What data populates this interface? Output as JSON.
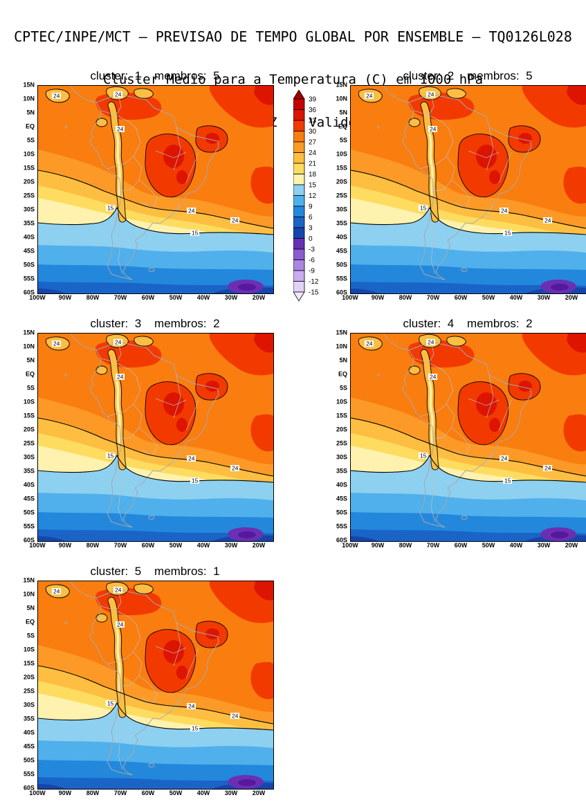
{
  "header": {
    "line1": "CPTEC/INPE/MCT — PREVISAO DE TEMPO GLOBAL POR ENSEMBLE — TQ0126L028",
    "line2": "Cluster Medio para a Temperatura (C) em 1000 hPa",
    "line3": "Previsao de: 2020121400Z    Valido para: 2020121512Z"
  },
  "panels": [
    {
      "title": "cluster:  1    membros:  5",
      "cluster": 1,
      "membros": 5
    },
    {
      "title": "cluster:  2    membros:  5",
      "cluster": 2,
      "membros": 5
    },
    {
      "title": "cluster:  3    membros:  2",
      "cluster": 3,
      "membros": 2
    },
    {
      "title": "cluster:  4    membros:  2",
      "cluster": 4,
      "membros": 2
    },
    {
      "title": "cluster:  5    membros:  1",
      "cluster": 5,
      "membros": 1
    }
  ],
  "axes": {
    "lat_ticks": [
      "15N",
      "10N",
      "5N",
      "EQ",
      "5S",
      "10S",
      "15S",
      "20S",
      "25S",
      "30S",
      "35S",
      "40S",
      "45S",
      "50S",
      "55S",
      "60S"
    ],
    "lon_ticks": [
      "100W",
      "90W",
      "80W",
      "70W",
      "60W",
      "50W",
      "40W",
      "30W",
      "20W"
    ]
  },
  "colorbar": {
    "tick_labels": [
      "39",
      "36",
      "33",
      "30",
      "27",
      "24",
      "21",
      "18",
      "15",
      "12",
      "9",
      "6",
      "3",
      "0",
      "-3",
      "-6",
      "-9",
      "-12",
      "-15"
    ],
    "cell_colors": [
      "#C40000",
      "#DC1400",
      "#F23A00",
      "#FA7D10",
      "#FD9A27",
      "#FDBE42",
      "#FEDC60",
      "#FEF2AE",
      "#8ED0F0",
      "#50B0EC",
      "#2388DC",
      "#1A64C8",
      "#1546AC",
      "#6B2FB3",
      "#8A5CD0",
      "#AC86E2",
      "#C9ACF0",
      "#E2D2F8"
    ],
    "triangle_top": "#A00000",
    "triangle_bottom": "#F0E8FC"
  },
  "map": {
    "contour_labels": [
      "24",
      "15"
    ]
  },
  "chart_data": {
    "type": "heatmap",
    "institution": "CPTEC/INPE/MCT",
    "product": "PREVISAO DE TEMPO GLOBAL POR ENSEMBLE",
    "model": "TQ0126L028",
    "title": "Cluster Medio para a Temperatura (C) em 1000 hPa",
    "forecast_init": "2020121400Z",
    "forecast_valid": "2020121512Z",
    "panels": [
      {
        "cluster": 1,
        "membros": 5
      },
      {
        "cluster": 2,
        "membros": 5
      },
      {
        "cluster": 3,
        "membros": 2
      },
      {
        "cluster": 4,
        "membros": 2
      },
      {
        "cluster": 5,
        "membros": 1
      }
    ],
    "x_axis": {
      "label": "longitude",
      "ticks": [
        "100W",
        "90W",
        "80W",
        "70W",
        "60W",
        "50W",
        "40W",
        "30W",
        "20W"
      ],
      "range": [
        "100W",
        "15W"
      ]
    },
    "y_axis": {
      "label": "latitude",
      "ticks": [
        "15N",
        "10N",
        "5N",
        "EQ",
        "5S",
        "10S",
        "15S",
        "20S",
        "25S",
        "30S",
        "35S",
        "40S",
        "45S",
        "50S",
        "55S",
        "60S"
      ],
      "range": [
        "15N",
        "60S"
      ]
    },
    "levels_c": [
      39,
      36,
      33,
      30,
      27,
      24,
      21,
      18,
      15,
      12,
      9,
      6,
      3,
      0,
      -3,
      -6,
      -9,
      -12,
      -15
    ],
    "labeled_contours_c": [
      24,
      15
    ],
    "legend_position": "between cluster 1 and cluster 2 panels, vertical",
    "grid": false,
    "field_summary": [
      "27-33 C over tropical South America north of about 20S; warmest cores 30-36 C over central and northeast Brazil and near the northern coast",
      "Cool strip of 15-24 C air along the Andes near 70W from the Equator to about 30S (24 C contour wraps the mountains)",
      "24 C contour crosses the continent near 25S-30S",
      "15 C contour near 33S-35S with a northward spike along the Andes",
      "Temperatures fall southward through 12, 9, 6 and 3 C bands to 0-3 C near 60S",
      "Small pocket below 0 C (purple) in the far South Atlantic near 55S 30W",
      "All five cluster means show nearly identical patterns"
    ]
  }
}
